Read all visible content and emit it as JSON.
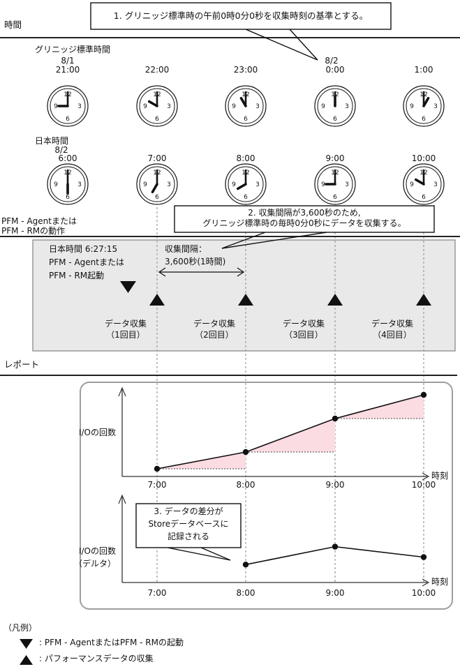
{
  "colors": {
    "pink": "#fbdce2",
    "gray_box": "#e9e9e9",
    "gray_box_border": "#8a8a8a",
    "dash": "#9a9a9a",
    "report_border": "#9e9e9e",
    "line": "#111111"
  },
  "timeSection": {
    "label": "時間"
  },
  "note1": {
    "text": "1. グリニッジ標準時の午前0時0分0秒を収集時刻の基準とする。"
  },
  "gmt": {
    "label": "グリニッジ標準時間",
    "date_first": "8/1",
    "date_second": "8/2",
    "times": [
      "21:00",
      "22:00",
      "23:00",
      "0:00",
      "1:00"
    ]
  },
  "jst": {
    "label": "日本時間",
    "date": "8/2",
    "times": [
      "6:00",
      "7:00",
      "8:00",
      "9:00",
      "10:00"
    ]
  },
  "pfmSection": {
    "label_line1": "PFM - Agentまたは",
    "label_line2": "PFM - RMの動作"
  },
  "note2": {
    "line1": "2. 収集間隔が3,600秒のため,",
    "line2": "グリニッジ標準時の毎時0分0秒にデータを収集する。"
  },
  "operation": {
    "start_line1": "日本時間 6:27:15",
    "start_line2": "PFM - Agentまたは",
    "start_line3": "PFM - RM起動",
    "interval_line1": "収集間隔：",
    "interval_line2": "3,600秒(1時間)",
    "collections": [
      [
        "データ収集",
        "（1回目）"
      ],
      [
        "データ収集",
        "（2回目）"
      ],
      [
        "データ収集",
        "（3回目）"
      ],
      [
        "データ収集",
        "（4回目）"
      ]
    ]
  },
  "reportSection": {
    "label": "レポート"
  },
  "note3": {
    "line1": "3. データの差分が",
    "line2": "Storeデータベースに",
    "line3": "記録される"
  },
  "chart_data": [
    {
      "type": "line",
      "x": [
        "7:00",
        "8:00",
        "9:00",
        "10:00"
      ],
      "values": [
        11,
        35,
        83,
        117
      ],
      "ylabel_lines": [
        "I/Oの回数"
      ],
      "xlabel": "時刻",
      "ylim": [
        0,
        130
      ],
      "grid": false,
      "shaded_deltas": true,
      "note": "cumulative I/O count sampled each hour; pink right-triangles mark hourly increase"
    },
    {
      "type": "line",
      "x": [
        "7:00",
        "8:00",
        "9:00",
        "10:00"
      ],
      "values": [
        null,
        24,
        48,
        34
      ],
      "ylabel_lines": [
        "I/Oの回数",
        "（デルタ）"
      ],
      "xlabel": "時刻",
      "ylim": [
        0,
        130
      ],
      "grid": false,
      "shaded_deltas": false,
      "note": "delta values recorded to Store database starting at second sample"
    }
  ],
  "legend": {
    "title": "（凡例）",
    "items": [
      {
        "symbol": "down-triangle",
        "text": ": PFM - AgentまたはPFM - RMの起動"
      },
      {
        "symbol": "up-triangle",
        "text": ": パフォーマンスデータの収集"
      }
    ]
  }
}
